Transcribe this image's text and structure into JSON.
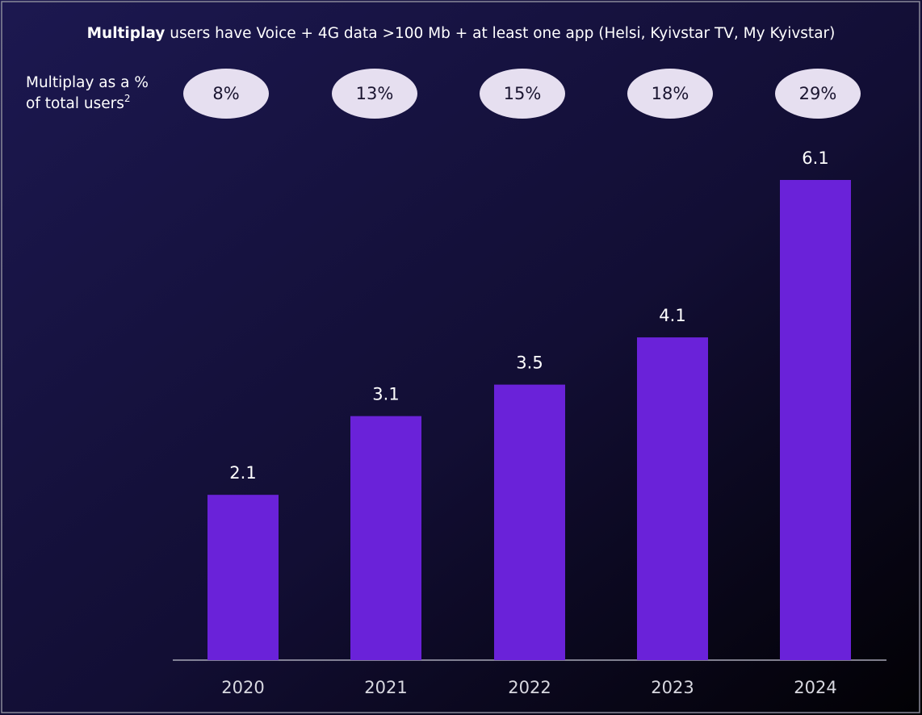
{
  "chart_data": {
    "type": "bar",
    "title_bold": "Multiplay",
    "title": "users have Voice + 4G data >100 Mb + at least one app (Helsi, Kyivstar TV, My Kyivstar)",
    "share_label": [
      "Multiplay as a %",
      "of total users"
    ],
    "share_label_footnote": "2",
    "share": {
      "values": [
        8,
        13,
        15,
        18,
        29
      ],
      "value_labels": [
        "8%",
        "13%",
        "15%",
        "18%",
        "29%"
      ]
    },
    "categories": [
      "2020",
      "2021",
      "2022",
      "2023",
      "2024"
    ],
    "values": [
      2.1,
      3.1,
      3.5,
      4.1,
      6.1
    ],
    "color": "#6a22d9",
    "share_color": "#e6dff0"
  }
}
